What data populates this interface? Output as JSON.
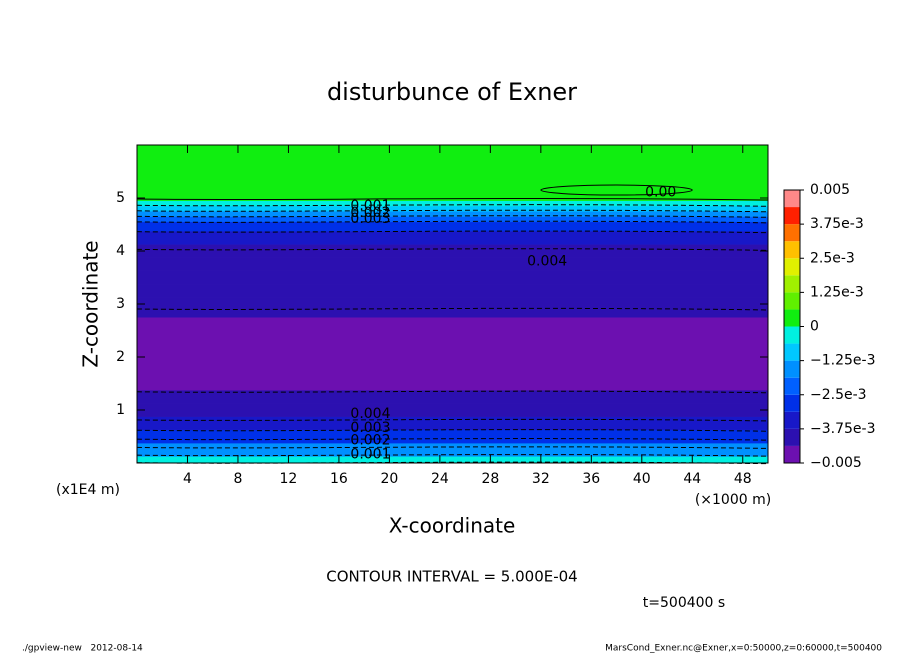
{
  "chart_data": {
    "type": "contour",
    "title": "disturbunce of Exner",
    "x_label": "X-coordinate",
    "y_label": "Z-coordinate",
    "x_unit": "(×1000 m)",
    "y_unit": "(x1E4 m)",
    "xlim": [
      0,
      50
    ],
    "ylim": [
      0,
      6
    ],
    "xticks": [
      4,
      8,
      12,
      16,
      20,
      24,
      28,
      32,
      36,
      40,
      44,
      48
    ],
    "yticks": [
      1,
      2,
      3,
      4,
      5
    ],
    "z": [
      0,
      0.25,
      0.5,
      0.75,
      1,
      1.25,
      1.5,
      2,
      2.5,
      3,
      3.25,
      3.5,
      3.75,
      4,
      4.25,
      4.5,
      4.6,
      4.7,
      4.8,
      4.9,
      5,
      5.5,
      6
    ],
    "values": [
      -0.0006,
      -0.0017,
      -0.0027,
      -0.0036,
      -0.0042,
      -0.0043,
      -0.0045,
      -0.0048,
      -0.0047,
      -0.0043,
      -0.0042,
      -0.0041,
      -0.004,
      -0.0038,
      -0.0034,
      -0.0028,
      -0.0022,
      -0.0016,
      -0.001,
      -0.0004,
      0.0001,
      0.0002,
      0.0001
    ],
    "colorbar": {
      "levels": [
        -0.005,
        -0.004375,
        -0.00375,
        -0.003125,
        -0.0025,
        -0.001875,
        -0.00125,
        -0.000625,
        0,
        0.000625,
        0.00125,
        0.001875,
        0.0025,
        0.003125,
        0.00375,
        0.004375,
        0.005
      ],
      "colors": [
        "#6c10b0",
        "#2c10b0",
        "#1818c8",
        "#0030e8",
        "#0060ff",
        "#0090ff",
        "#00c8ff",
        "#00f0e0",
        "#10ee10",
        "#60f000",
        "#a0f000",
        "#e0f000",
        "#ffc000",
        "#ff7000",
        "#ff2000",
        "#ff8888"
      ],
      "ticks": [
        {
          "value": -0.005,
          "label": "−0.005"
        },
        {
          "value": -0.00375,
          "label": "−3.75e-3"
        },
        {
          "value": -0.0025,
          "label": "−2.5e-3"
        },
        {
          "value": -0.00125,
          "label": "−1.25e-3"
        },
        0,
        {
          "value": 0.00125,
          "label": "1.25e-3"
        },
        {
          "value": 0.0025,
          "label": "2.5e-3"
        },
        {
          "value": 0.00375,
          "label": "3.75e-3"
        },
        0.005
      ]
    },
    "contour_labels": [
      {
        "text": "0.00",
        "x": 41.5,
        "z": 5.1
      },
      {
        "text": "0.001",
        "x": 18.5,
        "z": 4.85
      },
      {
        "text": "0.002",
        "x": 18.5,
        "z": 4.72
      },
      {
        "text": "0.003",
        "x": 18.5,
        "z": 4.6
      },
      {
        "text": "0.004",
        "x": 32.5,
        "z": 3.8
      },
      {
        "text": "0.004",
        "x": 18.5,
        "z": 0.92
      },
      {
        "text": "0.003",
        "x": 18.5,
        "z": 0.66
      },
      {
        "text": "0.002",
        "x": 18.5,
        "z": 0.42
      },
      {
        "text": "0.001",
        "x": 18.5,
        "z": 0.16
      }
    ],
    "contour_interval": "CONTOUR INTERVAL = 5.000E-04",
    "time_label": "t=500400 s",
    "footer_left": "./gpview-new   2012-08-14",
    "footer_right": "MarsCond_Exner.nc@Exner,x=0:50000,z=0:60000,t=500400"
  }
}
